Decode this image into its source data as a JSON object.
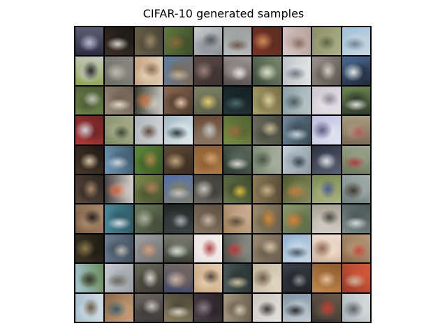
{
  "title": "CIFAR-10 generated samples",
  "grid": {
    "rows": 10,
    "cols": 10,
    "tiles": [
      {
        "c1": "#2a2d44",
        "c2": "#b6b4ce",
        "c3": "#5d5e74"
      },
      {
        "c1": "#3d2f26",
        "c2": "#d8d2c9",
        "c3": "#1a1815"
      },
      {
        "c1": "#6b6148",
        "c2": "#9a8a66",
        "c3": "#4b4536"
      },
      {
        "c1": "#5e7a3e",
        "c2": "#8c6b3d",
        "c3": "#3e4d2a"
      },
      {
        "c1": "#c9ccce",
        "c2": "#535b62",
        "c3": "#8a9197"
      },
      {
        "c1": "#b7b9ba",
        "c2": "#6e5b4a",
        "c3": "#9da09f"
      },
      {
        "c1": "#7a3322",
        "c2": "#d08a58",
        "c3": "#5a2e22"
      },
      {
        "c1": "#d7c7c7",
        "c2": "#8a6e61",
        "c3": "#b7a29a"
      },
      {
        "c1": "#8a8f62",
        "c2": "#5a6743",
        "c3": "#adb089"
      },
      {
        "c1": "#9fc1d8",
        "c2": "#6f8696",
        "c3": "#c8d7df"
      },
      {
        "c1": "#8aa34a",
        "c2": "#2a2a28",
        "c3": "#c8c9c3"
      },
      {
        "c1": "#6b6d63",
        "c2": "#bfbcb0",
        "c3": "#8b8a80"
      },
      {
        "c1": "#c4a27a",
        "c2": "#8c6e50",
        "c3": "#e1cfb8"
      },
      {
        "c1": "#5a7fa7",
        "c2": "#c4b295",
        "c3": "#7d6a57"
      },
      {
        "c1": "#5b4a45",
        "c2": "#9a8077",
        "c3": "#3d3230"
      },
      {
        "c1": "#4f4b4b",
        "c2": "#e6e2df",
        "c3": "#a09a96"
      },
      {
        "c1": "#3a4a3a",
        "c2": "#d7dbc8",
        "c3": "#7d8b6f"
      },
      {
        "c1": "#bcc2c7",
        "c2": "#6e7a83",
        "c3": "#e1e3e4"
      },
      {
        "c1": "#9a928a",
        "c2": "#d8d1c8",
        "c3": "#5b554f"
      },
      {
        "c1": "#4a6a94",
        "c2": "#e3e7ea",
        "c3": "#1f2b3b"
      },
      {
        "c1": "#6f8a4a",
        "c2": "#c2c1b8",
        "c3": "#4b5a35"
      },
      {
        "c1": "#9a8c7a",
        "c2": "#e0d8cd",
        "c3": "#6d6052"
      },
      {
        "c1": "#3a3b30",
        "c2": "#c47240",
        "c3": "#c9c9c0"
      },
      {
        "c1": "#8d6a52",
        "c2": "#e6c4a7",
        "c3": "#4d3b2f"
      },
      {
        "c1": "#7e8263",
        "c2": "#e7cf6f",
        "c3": "#5b5e49"
      },
      {
        "c1": "#23363a",
        "c2": "#4c6d6f",
        "c3": "#142022"
      },
      {
        "c1": "#a9a06a",
        "c2": "#d9d39c",
        "c3": "#766f47"
      },
      {
        "c1": "#8aa0a8",
        "c2": "#4d5a5c",
        "c3": "#b8c4c6"
      },
      {
        "c1": "#cbc9d0",
        "c2": "#8c8a92",
        "c3": "#e3e1e6"
      },
      {
        "c1": "#6e8a53",
        "c2": "#dcdedd",
        "c3": "#2f3a29"
      },
      {
        "c1": "#b23b3b",
        "c2": "#cfd4da",
        "c3": "#6a2322"
      },
      {
        "c1": "#7f8a62",
        "c2": "#3e4a35",
        "c3": "#a8ad8c"
      },
      {
        "c1": "#adb3b8",
        "c2": "#5f4b3f",
        "c3": "#d3d6d8"
      },
      {
        "c1": "#9fb6c2",
        "c2": "#2d3b44",
        "c3": "#e5ecef"
      },
      {
        "c1": "#6b4a35",
        "c2": "#c1c7cc",
        "c3": "#8a7863"
      },
      {
        "c1": "#7a9145",
        "c2": "#9a6e3e",
        "c3": "#4f6230"
      },
      {
        "c1": "#6f7163",
        "c2": "#c6b98f",
        "c3": "#4a4b40"
      },
      {
        "c1": "#6d8898",
        "c2": "#c8d3db",
        "c3": "#3b4d58"
      },
      {
        "c1": "#bcbfe1",
        "c2": "#5c5e86",
        "c3": "#e3e3f0"
      },
      {
        "c1": "#7d6a55",
        "c2": "#b25a57",
        "c3": "#a79c7f"
      },
      {
        "c1": "#4a3a2a",
        "c2": "#d8c7a8",
        "c3": "#1f1a14"
      },
      {
        "c1": "#6d96b4",
        "c2": "#cdd9e1",
        "c3": "#3f5a6d"
      },
      {
        "c1": "#5d8a3a",
        "c2": "#b08a4a",
        "c3": "#3c5a26"
      },
      {
        "c1": "#5e4a35",
        "c2": "#bfa37a",
        "c3": "#3b2e22"
      },
      {
        "c1": "#b07a45",
        "c2": "#d1a26a",
        "c3": "#8c5f34"
      },
      {
        "c1": "#2b3a2e",
        "c2": "#d7d9d5",
        "c3": "#5c6a5d"
      },
      {
        "c1": "#7a8a72",
        "c2": "#4a5549",
        "c3": "#a7b09f"
      },
      {
        "c1": "#c3d0da",
        "c2": "#3a4550",
        "c3": "#8d99a3"
      },
      {
        "c1": "#2a3040",
        "c2": "#d9dde2",
        "c3": "#5b6272"
      },
      {
        "c1": "#6a7a5a",
        "c2": "#a83e3a",
        "c3": "#9ca68d"
      },
      {
        "c1": "#5b4a3e",
        "c2": "#a68a6a",
        "c3": "#2e2520"
      },
      {
        "c1": "#3e4040",
        "c2": "#c9623f",
        "c3": "#d8d2cc"
      },
      {
        "c1": "#7c8a4a",
        "c2": "#b57d56",
        "c3": "#4a5530"
      },
      {
        "c1": "#4f6fae",
        "c2": "#c8c2b4",
        "c3": "#7f7f6f"
      },
      {
        "c1": "#6a6a60",
        "c2": "#c5c3bc",
        "c3": "#3d3d37"
      },
      {
        "c1": "#6a7a4a",
        "c2": "#dcbf3a",
        "c3": "#3f4a2e"
      },
      {
        "c1": "#8a7a55",
        "c2": "#c8b38a",
        "c3": "#5a4e37"
      },
      {
        "c1": "#4e5a30",
        "c2": "#c07a3a",
        "c3": "#8a8a5a"
      },
      {
        "c1": "#7b8a52",
        "c2": "#4a5a8a",
        "c3": "#a9b37e"
      },
      {
        "c1": "#6d7f7e",
        "c2": "#3e3930",
        "c3": "#a4b0ad"
      },
      {
        "c1": "#7a5a40",
        "c2": "#2a241e",
        "c3": "#a88c6e"
      },
      {
        "c1": "#4a8a9a",
        "c2": "#d7dfe2",
        "c3": "#2f5a66"
      },
      {
        "c1": "#6a7a5a",
        "c2": "#aeb1a0",
        "c3": "#424d38"
      },
      {
        "c1": "#1f2624",
        "c2": "#a7adaf",
        "c3": "#3b4544"
      },
      {
        "c1": "#8a7862",
        "c2": "#c9bca8",
        "c3": "#5c4f40"
      },
      {
        "c1": "#a3825e",
        "c2": "#5a4a36",
        "c3": "#cbb193"
      },
      {
        "c1": "#9a8a6a",
        "c2": "#d58a3a",
        "c3": "#6a5f49"
      },
      {
        "c1": "#8a9a6a",
        "c2": "#d9823a",
        "c3": "#5a6a45"
      },
      {
        "c1": "#a7a396",
        "c2": "#4a4a45",
        "c3": "#cfcbc0"
      },
      {
        "c1": "#7a8a8a",
        "c2": "#d7dcdc",
        "c3": "#4a5656"
      },
      {
        "c1": "#3a3524",
        "c2": "#8c7a4a",
        "c3": "#1f1c14"
      },
      {
        "c1": "#6a7f94",
        "c2": "#c0bdb5",
        "c3": "#424f5c"
      },
      {
        "c1": "#a2a3a5",
        "c2": "#d5a27a",
        "c3": "#6f7072"
      },
      {
        "c1": "#3b3f36",
        "c2": "#d8d9d2",
        "c3": "#7a7d6e"
      },
      {
        "c1": "#e7dfdf",
        "c2": "#b24646",
        "c3": "#f5f0ee"
      },
      {
        "c1": "#4a5048",
        "c2": "#b23a3a",
        "c3": "#8c8f86"
      },
      {
        "c1": "#9a8a72",
        "c2": "#d4c2a4",
        "c3": "#6a5e4d"
      },
      {
        "c1": "#8fb1d1",
        "c2": "#4a5a6a",
        "c3": "#c9d9e7"
      },
      {
        "c1": "#d2b7a0",
        "c2": "#8c6a55",
        "c3": "#f0dfd0"
      },
      {
        "c1": "#8a6a4a",
        "c2": "#c84a3a",
        "c3": "#b89a7a"
      },
      {
        "c1": "#a8c8d8",
        "c2": "#3a3a30",
        "c3": "#6a8a5a"
      },
      {
        "c1": "#c4cacd",
        "c2": "#6e6a63",
        "c3": "#9aa0a3"
      },
      {
        "c1": "#6a6a5a",
        "c2": "#d9d6cf",
        "c3": "#3a3a32"
      },
      {
        "c1": "#3f4a6a",
        "c2": "#c8b4a8",
        "c3": "#7a6a62"
      },
      {
        "c1": "#c9a37a",
        "c2": "#5a4a3a",
        "c3": "#e3cdb0"
      },
      {
        "c1": "#4a5a5a",
        "c2": "#d0c49a",
        "c3": "#2a3535"
      },
      {
        "c1": "#c0b49a",
        "c2": "#6a5e4a",
        "c3": "#e0d6c2"
      },
      {
        "c1": "#3a4048",
        "c2": "#8a8f94",
        "c3": "#1f2327"
      },
      {
        "c1": "#c48a4a",
        "c2": "#e7c49a",
        "c3": "#8c5a2e"
      },
      {
        "c1": "#9a3a2a",
        "c2": "#c4b4a0",
        "c3": "#d85a3a"
      },
      {
        "c1": "#a8c0d0",
        "c2": "#6a5a3e",
        "c3": "#cfdbe3"
      },
      {
        "c1": "#8a6a4a",
        "c2": "#3a5a6a",
        "c3": "#c9a07a"
      },
      {
        "c1": "#6a6560",
        "c2": "#c8c3bc",
        "c3": "#3e3b38"
      },
      {
        "c1": "#8a8060",
        "c2": "#d8d2c6",
        "c3": "#4a4535"
      },
      {
        "c1": "#4a3f45",
        "c2": "#8a7a82",
        "c3": "#2a2327"
      },
      {
        "c1": "#a89a82",
        "c2": "#d3c8b4",
        "c3": "#6a604e"
      },
      {
        "c1": "#c9c6bf",
        "c2": "#3a3a38",
        "c3": "#e3e1dc"
      },
      {
        "c1": "#7f93a3",
        "c2": "#2a2e33",
        "c3": "#c3ccd3"
      },
      {
        "c1": "#3a3530",
        "c2": "#c23a32",
        "c3": "#6a5a4a"
      },
      {
        "c1": "#aab6bb",
        "c2": "#5a6064",
        "c3": "#d7dcde"
      }
    ]
  }
}
